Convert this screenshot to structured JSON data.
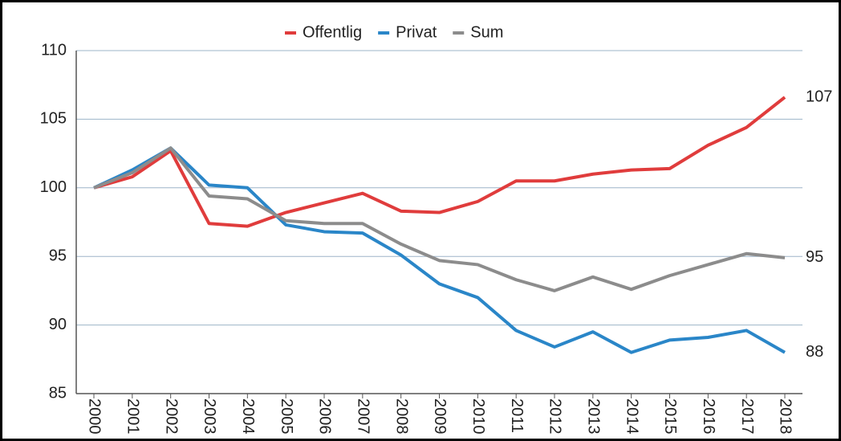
{
  "chart_data": {
    "type": "line",
    "categories": [
      "2000",
      "2001",
      "2002",
      "2003",
      "2004",
      "2005",
      "2006",
      "2007",
      "2008",
      "2009",
      "2010",
      "2011",
      "2012",
      "2013",
      "2014",
      "2015",
      "2016",
      "2017",
      "2018"
    ],
    "series": [
      {
        "name": "Offentlig",
        "color": "#e03c3c",
        "values": [
          100,
          100.8,
          102.7,
          97.4,
          97.2,
          98.2,
          98.9,
          99.6,
          98.3,
          98.2,
          99.0,
          100.5,
          100.5,
          101.0,
          101.3,
          101.4,
          103.1,
          104.4,
          106.6
        ],
        "value_labels": [
          null,
          null,
          null,
          null,
          null,
          null,
          null,
          null,
          null,
          null,
          null,
          null,
          null,
          null,
          null,
          null,
          null,
          null,
          "107"
        ]
      },
      {
        "name": "Privat",
        "color": "#2a86c8",
        "values": [
          100,
          101.3,
          102.9,
          100.2,
          100.0,
          97.3,
          96.8,
          96.7,
          95.1,
          93.0,
          92.0,
          89.6,
          88.4,
          89.5,
          88.0,
          88.9,
          89.1,
          89.6,
          88.0
        ],
        "value_labels": [
          null,
          null,
          null,
          null,
          null,
          null,
          null,
          null,
          null,
          null,
          null,
          null,
          null,
          null,
          null,
          null,
          null,
          null,
          "88"
        ]
      },
      {
        "name": "Sum",
        "color": "#8c8c8c",
        "values": [
          100,
          101.1,
          102.9,
          99.4,
          99.2,
          97.6,
          97.4,
          97.4,
          95.9,
          94.7,
          94.4,
          93.3,
          92.5,
          93.5,
          92.6,
          93.6,
          94.4,
          95.2,
          94.9
        ],
        "value_labels": [
          null,
          null,
          null,
          null,
          null,
          null,
          null,
          null,
          null,
          null,
          null,
          null,
          null,
          null,
          null,
          null,
          null,
          null,
          "95"
        ]
      }
    ],
    "ylim": [
      85,
      110
    ],
    "yticks": [
      85,
      90,
      95,
      100,
      105,
      110
    ],
    "grid": true,
    "legend": "top"
  }
}
